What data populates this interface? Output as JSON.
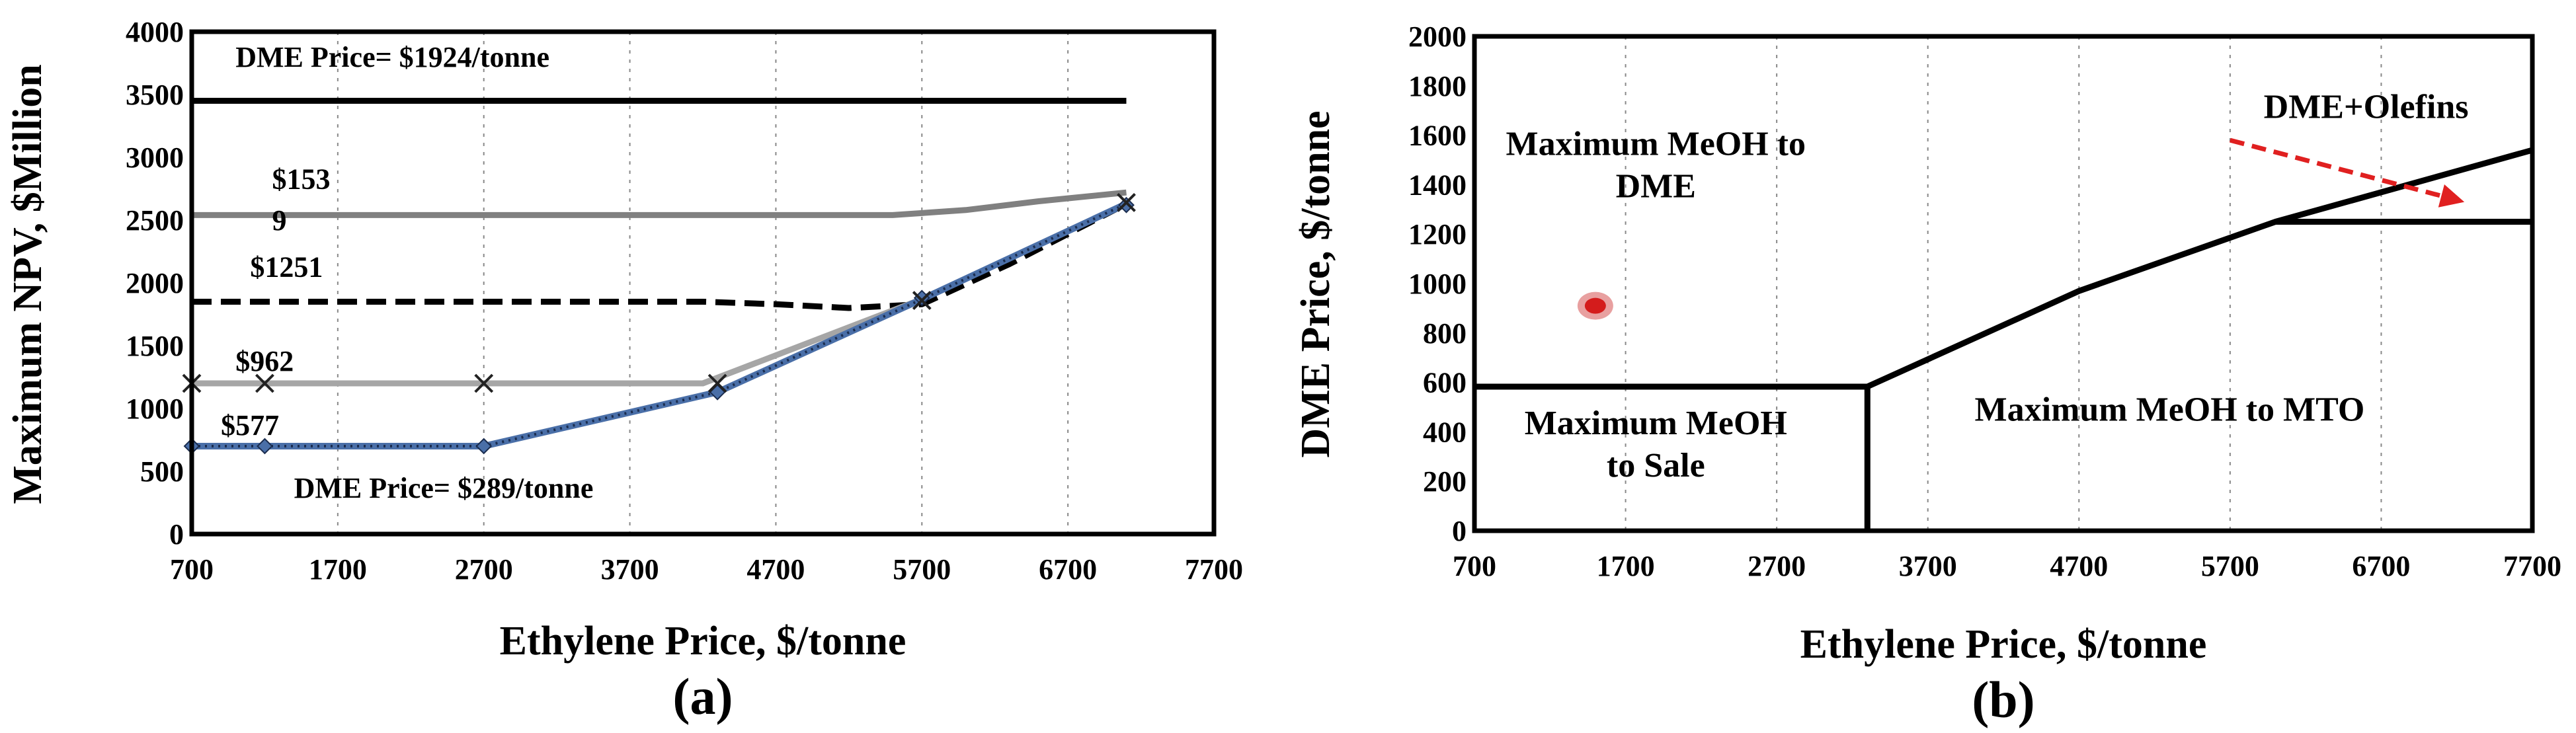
{
  "chart_data": [
    {
      "id": "a",
      "type": "line",
      "panel_label": "(a)",
      "xlabel": "Ethylene Price, $/tonne",
      "ylabel": "Maximum  NPV, $Million",
      "xlim": [
        700,
        7700
      ],
      "ylim": [
        0,
        4000
      ],
      "xticks": [
        700,
        1700,
        2700,
        3700,
        4700,
        5700,
        6700,
        7700
      ],
      "yticks": [
        0,
        500,
        1000,
        1500,
        2000,
        2500,
        3000,
        3500,
        4000
      ],
      "grid": "vertical-dashed",
      "series": [
        {
          "label": "DME Price= $1924/tonne",
          "color": "#000000",
          "style": "solid",
          "x": [
            700,
            7100
          ],
          "y": [
            3450,
            3450
          ]
        },
        {
          "label": "$1539",
          "color": "#808080",
          "style": "solid",
          "x": [
            700,
            2700,
            4700,
            5500,
            6000,
            6500,
            7100
          ],
          "y": [
            2540,
            2540,
            2540,
            2540,
            2580,
            2650,
            2720
          ]
        },
        {
          "label": "$1251",
          "color": "#000000",
          "style": "dashed",
          "x": [
            700,
            2700,
            4200,
            4700,
            5200,
            5700,
            6300,
            7100
          ],
          "y": [
            1850,
            1850,
            1850,
            1830,
            1800,
            1830,
            2150,
            2630
          ]
        },
        {
          "label": "$962",
          "color": "#a6a6a6",
          "style": "solid",
          "x": [
            700,
            4200,
            5700,
            7100
          ],
          "y": [
            1200,
            1200,
            1870,
            2630
          ]
        },
        {
          "label": "$577",
          "color": "#4a6fa8",
          "style": "dotted",
          "x": [
            700,
            1200,
            2700,
            4300,
            5700,
            7100
          ],
          "y": [
            700,
            700,
            700,
            1130,
            1870,
            2630
          ]
        }
      ],
      "markers_x": [
        {
          "x": 700,
          "y": 1200
        },
        {
          "x": 1200,
          "y": 1200
        },
        {
          "x": 2700,
          "y": 1200
        },
        {
          "x": 4300,
          "y": 1200
        },
        {
          "x": 5700,
          "y": 1860
        },
        {
          "x": 7100,
          "y": 2640
        }
      ],
      "markers_diamond": [
        {
          "x": 700,
          "y": 700
        },
        {
          "x": 1200,
          "y": 700
        },
        {
          "x": 2700,
          "y": 700
        },
        {
          "x": 4300,
          "y": 1130
        },
        {
          "x": 5700,
          "y": 1880
        },
        {
          "x": 7100,
          "y": 2620
        }
      ],
      "annotations": [
        {
          "text": "DME Price= $1924/tonne",
          "x": 1000,
          "y": 3720
        },
        {
          "text": "$153",
          "x": 1250,
          "y": 2750
        },
        {
          "text": "9",
          "x": 1250,
          "y": 2420
        },
        {
          "text": "$1251",
          "x": 1100,
          "y": 2050
        },
        {
          "text": "$962",
          "x": 1000,
          "y": 1300
        },
        {
          "text": "$577",
          "x": 900,
          "y": 790
        },
        {
          "text": "DME Price= $289/tonne",
          "x": 1400,
          "y": 290
        }
      ]
    },
    {
      "id": "b",
      "type": "line",
      "panel_label": "(b)",
      "xlabel": "Ethylene Price, $/tonne",
      "ylabel": "DME Price, $/tonne",
      "xlim": [
        700,
        7700
      ],
      "ylim": [
        0,
        2000
      ],
      "xticks": [
        700,
        1700,
        2700,
        3700,
        4700,
        5700,
        6700,
        7700
      ],
      "yticks": [
        0,
        200,
        400,
        600,
        800,
        1000,
        1200,
        1400,
        1600,
        1800,
        2000
      ],
      "grid": "vertical-dashed",
      "boundaries": [
        {
          "x": [
            700,
            3300
          ],
          "y": [
            583,
            583
          ]
        },
        {
          "x": [
            3300,
            3300
          ],
          "y": [
            0,
            583
          ]
        },
        {
          "x": [
            3300,
            4700,
            6000,
            7700
          ],
          "y": [
            583,
            970,
            1250,
            1540
          ]
        },
        {
          "x": [
            6000,
            7700
          ],
          "y": [
            1250,
            1250
          ]
        }
      ],
      "regions": [
        {
          "lines": [
            "Maximum MeOH to",
            "DME"
          ],
          "x": 1900,
          "y": 1520
        },
        {
          "lines": [
            "Maximum MeOH",
            "to Sale"
          ],
          "x": 1900,
          "y": 390
        },
        {
          "lines": [
            "Maximum MeOH to MTO"
          ],
          "x": 5300,
          "y": 445
        },
        {
          "lines": [
            "DME+Olefins"
          ],
          "x": 6600,
          "y": 1670
        }
      ],
      "point": {
        "x": 1500,
        "y": 910
      },
      "arrow": {
        "from": [
          5700,
          1580
        ],
        "to": [
          7250,
          1330
        ]
      }
    }
  ]
}
